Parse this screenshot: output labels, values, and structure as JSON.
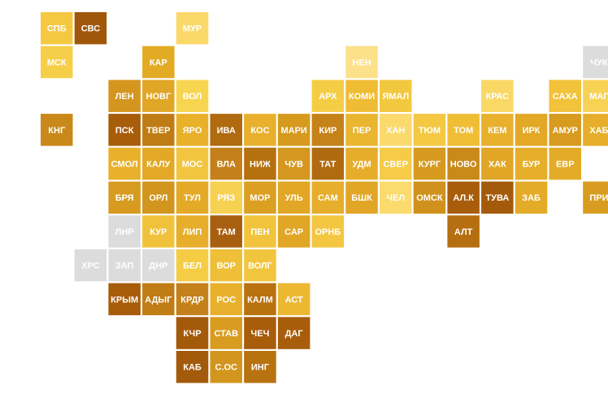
{
  "tiles": {
    "rows": [
      [
        {
          "label": "СПБ",
          "color": "#f5c842"
        },
        {
          "label": "СВС",
          "color": "#a0570a"
        },
        null,
        null,
        {
          "label": "МУР",
          "color": "#fbd86a"
        }
      ],
      [
        {
          "label": "МСК",
          "color": "#f6cf4a"
        },
        null,
        null,
        {
          "label": "КАР",
          "color": "#e3ab24"
        },
        null,
        null,
        null,
        null,
        null,
        {
          "label": "НЕН",
          "color": "#fde08a"
        },
        null,
        null,
        null,
        null,
        null,
        null,
        {
          "label": "ЧУК",
          "color": "#dcdcdc"
        }
      ],
      [
        null,
        null,
        {
          "label": "ЛЕН",
          "color": "#d4961e"
        },
        {
          "label": "НОВГ",
          "color": "#e0a626"
        },
        {
          "label": "ВОЛ",
          "color": "#f8d550"
        },
        null,
        null,
        null,
        {
          "label": "АРХ",
          "color": "#f5cd45"
        },
        {
          "label": "КОМИ",
          "color": "#efbd33"
        },
        {
          "label": "ЯМАЛ",
          "color": "#f2c83f"
        },
        null,
        null,
        {
          "label": "КРАС",
          "color": "#f9d866"
        },
        null,
        {
          "label": "САХА",
          "color": "#f1c23a"
        },
        {
          "label": "МАГ",
          "color": "#f7d255"
        }
      ],
      [
        {
          "label": "КНГ",
          "color": "#c9891a"
        },
        null,
        {
          "label": "ПСК",
          "color": "#a85d0b"
        },
        {
          "label": "ТВЕР",
          "color": "#c07c14"
        },
        {
          "label": "ЯРО",
          "color": "#e9b02a"
        },
        {
          "label": "ИВА",
          "color": "#b06a10"
        },
        {
          "label": "КОС",
          "color": "#e8b02c"
        },
        {
          "label": "МАРИ",
          "color": "#d69a1e"
        },
        {
          "label": "КИР",
          "color": "#c58218"
        },
        {
          "label": "ПЕР",
          "color": "#eab52f"
        },
        {
          "label": "ХАН",
          "color": "#fbd96d"
        },
        {
          "label": "ТЮМ",
          "color": "#f4c843"
        },
        {
          "label": "ТОМ",
          "color": "#efbe35"
        },
        {
          "label": "КЕМ",
          "color": "#e8b02c"
        },
        {
          "label": "ИРК",
          "color": "#e2a826"
        },
        {
          "label": "АМУР",
          "color": "#d79b1f"
        },
        {
          "label": "ХАБ",
          "color": "#e6ae2a"
        }
      ],
      [
        null,
        null,
        {
          "label": "СМОЛ",
          "color": "#e9b02b"
        },
        {
          "label": "КАЛУ",
          "color": "#e2a826"
        },
        {
          "label": "МОС",
          "color": "#f2c540"
        },
        {
          "label": "ВЛА",
          "color": "#c4801a"
        },
        {
          "label": "НИЖ",
          "color": "#b5700f"
        },
        {
          "label": "ЧУВ",
          "color": "#d49820"
        },
        {
          "label": "ТАТ",
          "color": "#b06a10"
        },
        {
          "label": "УДМ",
          "color": "#e6ad2a"
        },
        {
          "label": "СВЕР",
          "color": "#f5cb47"
        },
        {
          "label": "КУРГ",
          "color": "#d69a1f"
        },
        {
          "label": "НОВО",
          "color": "#c98a1a"
        },
        {
          "label": "ХАК",
          "color": "#e1a626"
        },
        {
          "label": "БУР",
          "color": "#e6ae2a"
        },
        {
          "label": "ЕВР",
          "color": "#e3ab27"
        }
      ],
      [
        null,
        null,
        {
          "label": "БРЯ",
          "color": "#d79b20"
        },
        {
          "label": "ОРЛ",
          "color": "#d2951e"
        },
        {
          "label": "ТУЛ",
          "color": "#e4aa27"
        },
        {
          "label": "РЯЗ",
          "color": "#f7d252"
        },
        {
          "label": "МОР",
          "color": "#dba022"
        },
        {
          "label": "УЛЬ",
          "color": "#e2a726"
        },
        {
          "label": "САМ",
          "color": "#e6ae2b"
        },
        {
          "label": "БШК",
          "color": "#e1a626"
        },
        {
          "label": "ЧЕЛ",
          "color": "#fbda6e"
        },
        {
          "label": "ОМСК",
          "color": "#d0921d"
        },
        {
          "label": "АЛ.К",
          "color": "#a85d0b"
        },
        {
          "label": "ТУВА",
          "color": "#a35a0a"
        },
        {
          "label": "ЗАБ",
          "color": "#e4ab28"
        },
        null,
        {
          "label": "ПРИ",
          "color": "#d89d20"
        }
      ],
      [
        null,
        null,
        {
          "label": "ЛНР",
          "color": "#dcdcdc"
        },
        {
          "label": "КУР",
          "color": "#f0c23b"
        },
        {
          "label": "ЛИП",
          "color": "#e6ae2a"
        },
        {
          "label": "ТАМ",
          "color": "#a86010"
        },
        {
          "label": "ПЕН",
          "color": "#f2c43e"
        },
        {
          "label": "САР",
          "color": "#e0a625"
        },
        {
          "label": "ОРНБ",
          "color": "#f3c742"
        },
        null,
        null,
        null,
        {
          "label": "АЛТ",
          "color": "#b56f10"
        }
      ],
      [
        null,
        {
          "label": "ХРС",
          "color": "#dcdcdc"
        },
        {
          "label": "ЗАП",
          "color": "#dcdcdc"
        },
        {
          "label": "ДНР",
          "color": "#dcdcdc"
        },
        {
          "label": "БЕЛ",
          "color": "#f5cd45"
        },
        {
          "label": "ВОР",
          "color": "#efbf37"
        },
        {
          "label": "ВОЛГ",
          "color": "#f2c53f"
        }
      ],
      [
        null,
        null,
        {
          "label": "КРЫМ",
          "color": "#a85d0b"
        },
        {
          "label": "АДЫГ",
          "color": "#c07c15"
        },
        {
          "label": "КРДР",
          "color": "#c4801a"
        },
        {
          "label": "РОС",
          "color": "#e8b02c"
        },
        {
          "label": "КАЛМ",
          "color": "#b8720f"
        },
        {
          "label": "АСТ",
          "color": "#ecb832"
        }
      ],
      [
        null,
        null,
        null,
        null,
        {
          "label": "КЧР",
          "color": "#a35a0a"
        },
        {
          "label": "СТАВ",
          "color": "#d89c20"
        },
        {
          "label": "ЧЕЧ",
          "color": "#a85d0b"
        },
        {
          "label": "ДАГ",
          "color": "#a85d0b"
        }
      ],
      [
        null,
        null,
        null,
        null,
        {
          "label": "КАБ",
          "color": "#a35a0a"
        },
        {
          "label": "С.ОС",
          "color": "#d2951e"
        },
        {
          "label": "ИНГ",
          "color": "#b8720f"
        }
      ]
    ]
  }
}
